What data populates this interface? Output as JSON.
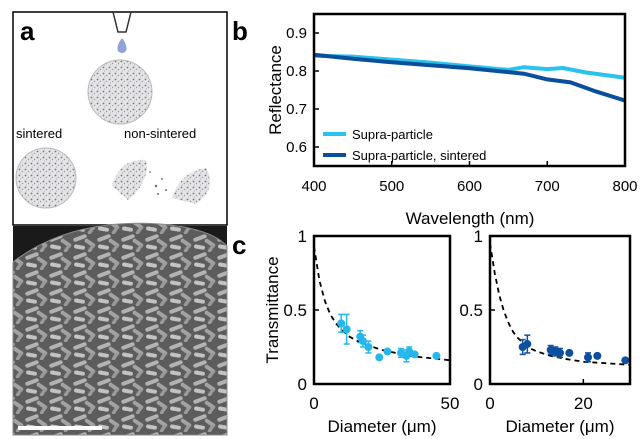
{
  "panels": {
    "a": "a",
    "b": "b",
    "c": "c"
  },
  "illustration": {
    "label_sintered": "sintered",
    "label_non_sintered": "non-sintered",
    "droplet_color": "#8ea3d6",
    "sphere_color": "#9a9a9a",
    "sem_color": "#7d7d7d"
  },
  "chart_data": [
    {
      "id": "b",
      "type": "line",
      "xlabel": "Wavelength (nm)",
      "ylabel": "Reflectance",
      "xlim": [
        400,
        800
      ],
      "ylim": [
        0.55,
        0.95
      ],
      "xticks": [
        400,
        500,
        600,
        700,
        800
      ],
      "yticks": [
        0.6,
        0.7,
        0.8,
        0.9
      ],
      "legend_position": "bottom-left",
      "grid": false,
      "series": [
        {
          "name": "Supra-particle",
          "color": "#29c3ee",
          "x": [
            400,
            450,
            500,
            550,
            600,
            650,
            670,
            700,
            720,
            750,
            780,
            800
          ],
          "y": [
            0.84,
            0.838,
            0.83,
            0.822,
            0.812,
            0.803,
            0.81,
            0.805,
            0.808,
            0.796,
            0.788,
            0.782
          ]
        },
        {
          "name": "Supra-particle, sintered",
          "color": "#0a4f9c",
          "x": [
            400,
            450,
            500,
            550,
            600,
            650,
            670,
            700,
            730,
            760,
            800
          ],
          "y": [
            0.843,
            0.832,
            0.823,
            0.815,
            0.807,
            0.797,
            0.793,
            0.778,
            0.77,
            0.748,
            0.722
          ]
        }
      ]
    },
    {
      "id": "c-left",
      "type": "scatter",
      "xlabel": "Diameter (μm)",
      "ylabel": "Transmittance",
      "xlim": [
        0,
        50
      ],
      "ylim": [
        0,
        1
      ],
      "xticks": [
        0,
        50
      ],
      "yticks": [
        0,
        0.5,
        1
      ],
      "ytick_labels": [
        "0",
        "0.5",
        "1"
      ],
      "color": "#26b8ec",
      "points": [
        {
          "x": 10,
          "y": 0.41,
          "err": 0.06
        },
        {
          "x": 12,
          "y": 0.37,
          "err": 0.1
        },
        {
          "x": 17,
          "y": 0.32,
          "err": 0.04
        },
        {
          "x": 18,
          "y": 0.29,
          "err": 0.04
        },
        {
          "x": 20,
          "y": 0.25,
          "err": 0.04
        },
        {
          "x": 24,
          "y": 0.18,
          "err": 0
        },
        {
          "x": 27,
          "y": 0.22,
          "err": 0
        },
        {
          "x": 32,
          "y": 0.21,
          "err": 0.03
        },
        {
          "x": 34,
          "y": 0.19,
          "err": 0.04
        },
        {
          "x": 35,
          "y": 0.22,
          "err": 0.03
        },
        {
          "x": 37,
          "y": 0.2,
          "err": 0
        },
        {
          "x": 45,
          "y": 0.19,
          "err": 0
        }
      ],
      "fit": {
        "style": "dashed",
        "x": [
          0,
          2,
          4,
          6,
          8,
          10,
          13,
          16,
          20,
          25,
          30,
          35,
          40,
          45,
          50
        ],
        "y": [
          0.93,
          0.7,
          0.56,
          0.47,
          0.41,
          0.37,
          0.32,
          0.29,
          0.26,
          0.23,
          0.21,
          0.19,
          0.18,
          0.17,
          0.16
        ]
      }
    },
    {
      "id": "c-right",
      "type": "scatter",
      "xlabel": "Diameter (μm)",
      "xlim": [
        0,
        30
      ],
      "ylim": [
        0,
        1
      ],
      "xticks": [
        0,
        20
      ],
      "yticks": [
        0,
        0.5,
        1
      ],
      "ytick_labels": [
        "0",
        "0.5",
        "1"
      ],
      "color": "#0e4f9e",
      "points": [
        {
          "x": 7,
          "y": 0.25,
          "err": 0.05
        },
        {
          "x": 8,
          "y": 0.27,
          "err": 0.06
        },
        {
          "x": 13,
          "y": 0.23,
          "err": 0.03
        },
        {
          "x": 14,
          "y": 0.22,
          "err": 0.03
        },
        {
          "x": 15,
          "y": 0.21,
          "err": 0.03
        },
        {
          "x": 17,
          "y": 0.21,
          "err": 0
        },
        {
          "x": 21,
          "y": 0.18,
          "err": 0.03
        },
        {
          "x": 23,
          "y": 0.19,
          "err": 0
        },
        {
          "x": 29,
          "y": 0.16,
          "err": 0
        }
      ],
      "fit": {
        "style": "dashed",
        "x": [
          0,
          1,
          2,
          3,
          4,
          5,
          6,
          8,
          10,
          13,
          16,
          20,
          25,
          30
        ],
        "y": [
          0.95,
          0.75,
          0.6,
          0.49,
          0.41,
          0.35,
          0.31,
          0.25,
          0.22,
          0.19,
          0.17,
          0.15,
          0.14,
          0.13
        ]
      }
    }
  ]
}
